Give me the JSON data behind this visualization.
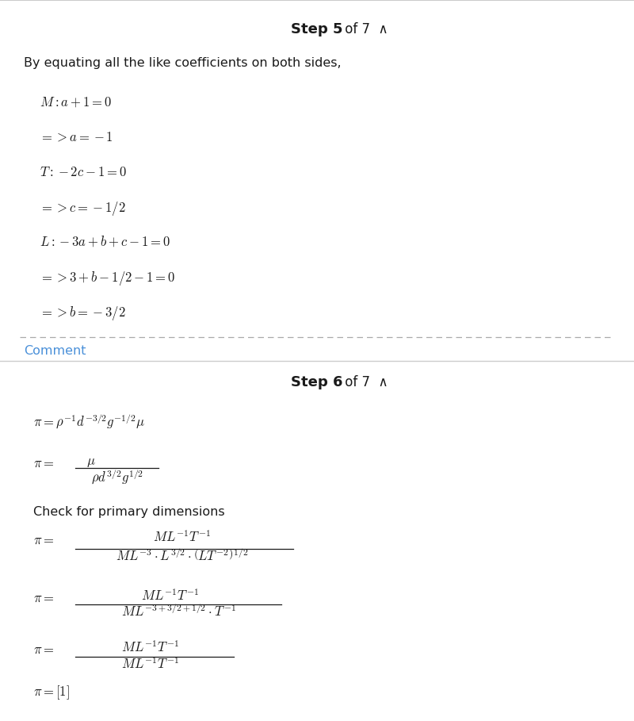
{
  "bg_color": "#ffffff",
  "text_color": "#1a1a1a",
  "comment_color": "#4a90d9",
  "gray_border": "#cccccc",
  "dash_color": "#aaaaaa",
  "step5_label": "Step 5",
  "step6_label": "Step 6",
  "of7_label": " of 7  ∧",
  "intro_text": "By equating all the like coefficients on both sides,",
  "comment_text": "Comment",
  "check_text": "Check for primary dimensions",
  "math5_lines": [
    "$M:a+1=0$",
    "$=>a=-1$",
    "$T:-2c-1=0$",
    "$=>c=-1/2$",
    "$L:-3a+b+c-1=0$",
    "$=>3+b-1/2-1=0$",
    "$=>b=-3/2$"
  ],
  "math6_line1": "$\\pi = \\rho^{-1}d^{-3/2}g^{-1/2}\\mu$",
  "math6_frac1_num": "$\\mu$",
  "math6_frac1_den": "$\\rho d^{3/2}g^{1/2}$",
  "math6_frac2_num": "$ML^{-1}T^{-1}$",
  "math6_frac2_den": "$ML^{-3} \\cdot L^{3/2} \\cdot \\left(LT^{-2}\\right)^{1/2}$",
  "math6_frac3_num": "$ML^{-1}T^{-1}$",
  "math6_frac3_den": "$ML^{-3+3/2+1/2} \\cdot T^{-1}$",
  "math6_frac4_num": "$ML^{-1}T^{-1}$",
  "math6_frac4_den": "$ML^{-1}T^{-1}$",
  "math6_last": "$\\pi = [1]$"
}
